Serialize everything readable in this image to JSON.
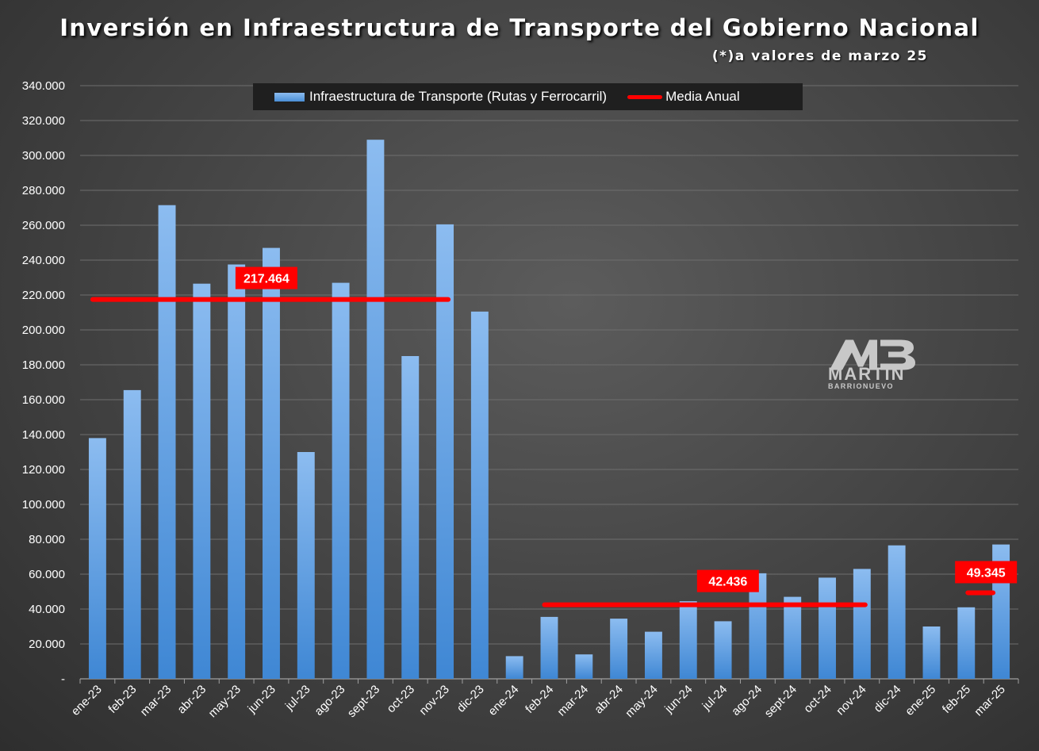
{
  "title": "Inversión en Infraestructura de Transporte del Gobierno Nacional",
  "subtitle": "(*)a valores de marzo 25",
  "legend": {
    "bar_label": "Infraestructura de Transporte (Rutas y Ferrocarril)",
    "line_label": "Media Anual"
  },
  "logo": {
    "name": "MARTÍN",
    "sub": "BARRIONUEVO",
    "icon": "mb-monogram-icon"
  },
  "colors": {
    "bar_top": "#8cbcf0",
    "bar_bottom": "#3f87d4",
    "mean_line": "#ff0000",
    "label_bg": "#ff0000",
    "label_text": "#ffffff"
  },
  "chart_data": {
    "type": "bar",
    "categories": [
      "ene-23",
      "feb-23",
      "mar-23",
      "abr-23",
      "may-23",
      "jun-23",
      "jul-23",
      "ago-23",
      "sept-23",
      "oct-23",
      "nov-23",
      "dic-23",
      "ene-24",
      "feb-24",
      "mar-24",
      "abr-24",
      "may-24",
      "jun-24",
      "jul-24",
      "ago-24",
      "sept-24",
      "oct-24",
      "nov-24",
      "dic-24",
      "ene-25",
      "feb-25",
      "mar-25"
    ],
    "series": [
      {
        "name": "Infraestructura de Transporte (Rutas y Ferrocarril)",
        "values": [
          138000,
          165500,
          271500,
          226500,
          237500,
          247000,
          130000,
          227000,
          309000,
          185000,
          260500,
          210500,
          13000,
          35500,
          14000,
          34500,
          27000,
          44500,
          33000,
          60500,
          47000,
          58000,
          63000,
          76500,
          30000,
          41000,
          77000
        ]
      }
    ],
    "means": [
      {
        "label": "217.464",
        "value": 217464,
        "from": "ene-23",
        "to": "nov-23"
      },
      {
        "label": "42.436",
        "value": 42436,
        "from": "feb-24",
        "to": "nov-24"
      },
      {
        "label": "49.345",
        "value": 49345,
        "from": "feb-25",
        "to": "mar-25"
      }
    ],
    "ylim": [
      0,
      340000
    ],
    "ytick_step": 20000,
    "ytick_labels": [
      "-",
      "20.000",
      "40.000",
      "60.000",
      "80.000",
      "100.000",
      "120.000",
      "140.000",
      "160.000",
      "180.000",
      "200.000",
      "220.000",
      "240.000",
      "260.000",
      "280.000",
      "300.000",
      "320.000",
      "340.000"
    ],
    "grid": true,
    "legend_position": "top"
  }
}
